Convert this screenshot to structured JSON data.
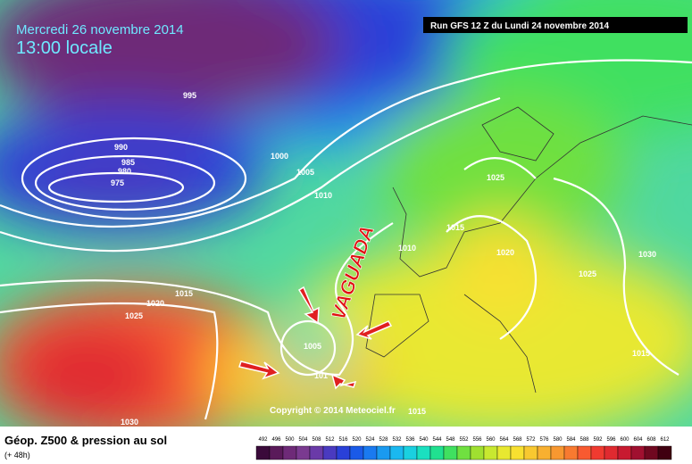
{
  "header": {
    "date": "Mercredi 26 novembre 2014",
    "time": "13:00 locale",
    "run": "Run GFS 12 Z du Lundi 24 novembre 2014"
  },
  "annotation": "VAGUADA",
  "copyright": "Copyright © 2014 Meteociel.fr",
  "isobars": [
    "995",
    "990",
    "985",
    "980",
    "975",
    "1000",
    "1005",
    "1010",
    "1015",
    "1020",
    "1025",
    "1030",
    "1005",
    "101",
    "1015",
    "1010",
    "1015",
    "1020",
    "1025",
    "1025",
    "1030",
    "1015"
  ],
  "legend": {
    "title": "Géop. Z500 & pression au sol",
    "lead": "(+ 48h)",
    "levels": [
      "492",
      "496",
      "500",
      "504",
      "508",
      "512",
      "516",
      "520",
      "524",
      "528",
      "532",
      "536",
      "540",
      "544",
      "548",
      "552",
      "556",
      "560",
      "564",
      "568",
      "572",
      "576",
      "580",
      "584",
      "588",
      "592",
      "596",
      "600",
      "604",
      "608",
      "612"
    ],
    "colors": [
      "#3a0a3a",
      "#5a1a5a",
      "#6e2a78",
      "#7a3a90",
      "#6a3aa8",
      "#4a3ac0",
      "#2a40d8",
      "#1a5ae8",
      "#1a7af0",
      "#1a9af0",
      "#1ab8f0",
      "#1ad0e0",
      "#1ae0c0",
      "#20e090",
      "#40e060",
      "#70e040",
      "#a0e030",
      "#c8e830",
      "#e8e830",
      "#f8e030",
      "#f8c830",
      "#f8b030",
      "#f89830",
      "#f87a30",
      "#f85a30",
      "#f03a30",
      "#e02a30",
      "#c81a30",
      "#a01030",
      "#700820",
      "#400010"
    ]
  }
}
